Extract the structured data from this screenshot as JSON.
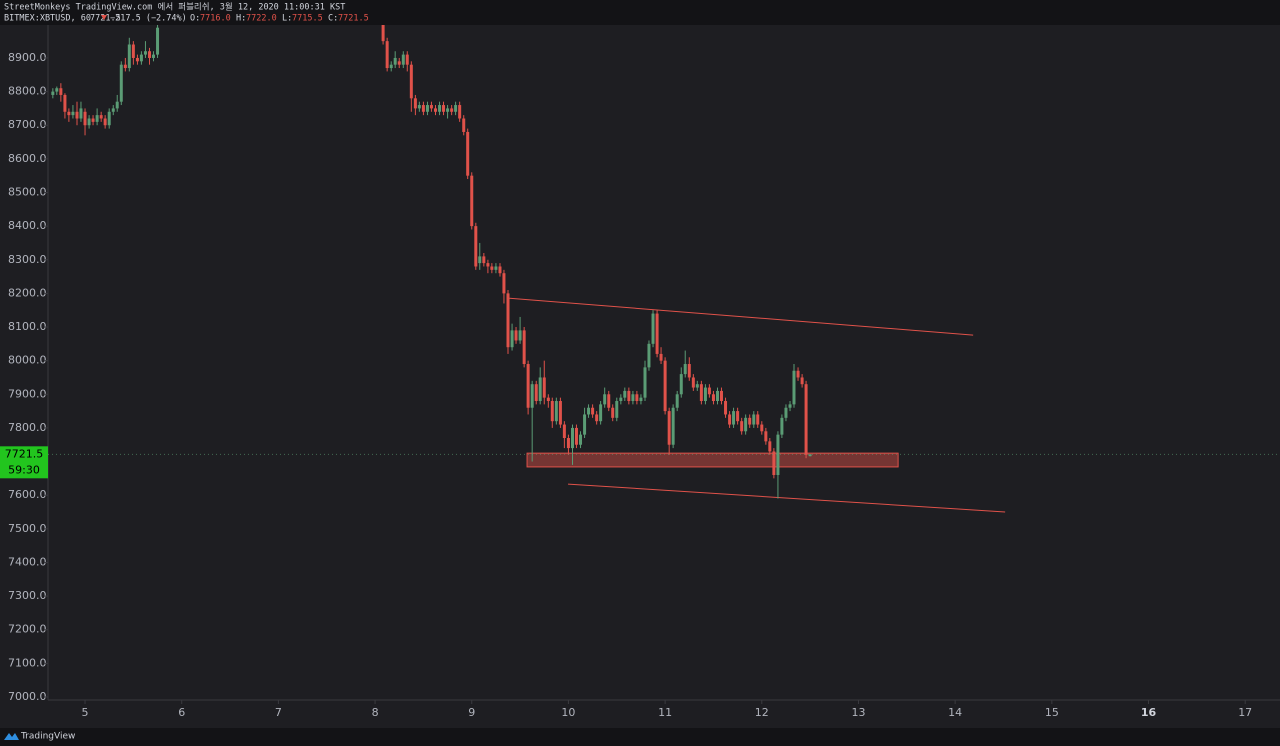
{
  "header": {
    "published": "StreetMonkeys TradingView.com 에서 퍼블리쉬, 3월 12, 2020 11:00:31 KST",
    "symbol": "BITMEX:XBTUSD, 60",
    "last": "7721.5",
    "change": "−217.5 (−2.74%)",
    "ohlc": [
      {
        "label": "O:",
        "value": "7716.0"
      },
      {
        "label": "H:",
        "value": "7722.0"
      },
      {
        "label": "L:",
        "value": "7715.5"
      },
      {
        "label": "C:",
        "value": "7721.5"
      }
    ]
  },
  "footer": {
    "brand": "TradingView"
  },
  "chart_data": {
    "type": "candlestick",
    "up_color": "#5b9c75",
    "down_color": "#e0524a",
    "xlim": [
      4.617,
      17.36
    ],
    "xticks": [
      5,
      6,
      7,
      8,
      9,
      10,
      11,
      12,
      13,
      14,
      15,
      16,
      17
    ],
    "ylim": [
      6991,
      8998
    ],
    "yticks": [
      {
        "value": 8900,
        "label": "8900.0"
      },
      {
        "value": 8800,
        "label": "8800.0"
      },
      {
        "value": 8700,
        "label": "8700.0"
      },
      {
        "value": 8600,
        "label": "8600.0"
      },
      {
        "value": 8500,
        "label": "8500.0"
      },
      {
        "value": 8400,
        "label": "8400.0"
      },
      {
        "value": 8300,
        "label": "8300.0"
      },
      {
        "value": 8200,
        "label": "8200.0"
      },
      {
        "value": 8100,
        "label": "8100.0"
      },
      {
        "value": 8000,
        "label": "8000.0"
      },
      {
        "value": 7900,
        "label": "7900.0"
      },
      {
        "value": 7800,
        "label": "7800.0"
      },
      {
        "value": 7700,
        "label": "7700.0"
      },
      {
        "value": 7600,
        "label": "7600.0"
      },
      {
        "value": 7500,
        "label": "7500.0"
      },
      {
        "value": 7400,
        "label": "7400.0"
      },
      {
        "value": 7300,
        "label": "7300.0"
      },
      {
        "value": 7200,
        "label": "7200.0"
      },
      {
        "value": 7100,
        "label": "7100.0"
      },
      {
        "value": 7000,
        "label": "7000.0"
      }
    ],
    "x": [
      4.667,
      4.708,
      4.75,
      4.792,
      4.833,
      4.875,
      4.917,
      4.958,
      5,
      5.042,
      5.083,
      5.125,
      5.167,
      5.208,
      5.25,
      5.292,
      5.333,
      5.375,
      5.417,
      5.458,
      5.5,
      5.542,
      5.583,
      5.625,
      5.667,
      5.708,
      5.75,
      8.083,
      8.125,
      8.167,
      8.208,
      8.25,
      8.292,
      8.333,
      8.375,
      8.417,
      8.458,
      8.5,
      8.542,
      8.583,
      8.625,
      8.667,
      8.708,
      8.75,
      8.792,
      8.833,
      8.875,
      8.917,
      8.958,
      9,
      9.042,
      9.083,
      9.125,
      9.167,
      9.208,
      9.25,
      9.292,
      9.333,
      9.375,
      9.417,
      9.458,
      9.5,
      9.542,
      9.583,
      9.625,
      9.667,
      9.708,
      9.75,
      9.792,
      9.833,
      9.875,
      9.917,
      9.958,
      10,
      10.042,
      10.083,
      10.125,
      10.167,
      10.208,
      10.25,
      10.292,
      10.333,
      10.375,
      10.417,
      10.458,
      10.5,
      10.542,
      10.583,
      10.625,
      10.667,
      10.708,
      10.75,
      10.792,
      10.833,
      10.875,
      10.917,
      10.958,
      11,
      11.042,
      11.083,
      11.125,
      11.167,
      11.208,
      11.25,
      11.292,
      11.333,
      11.375,
      11.417,
      11.458,
      11.5,
      11.542,
      11.583,
      11.625,
      11.667,
      11.708,
      11.75,
      11.792,
      11.833,
      11.875,
      11.917,
      11.958,
      12,
      12.042,
      12.083,
      12.125,
      12.167,
      12.208,
      12.25,
      12.292,
      12.333,
      12.375,
      12.417,
      12.458,
      12.5
    ],
    "open": [
      8790,
      8800,
      8810,
      8790,
      8740,
      8730,
      8740,
      8720,
      8740,
      8700,
      8720,
      8710,
      8730,
      8720,
      8700,
      8740,
      8750,
      8770,
      8880,
      8870,
      8940,
      8900,
      8890,
      8910,
      8920,
      8900,
      8910,
      9050,
      8950,
      8870,
      8880,
      8890,
      8880,
      8910,
      8880,
      8780,
      8750,
      8760,
      8740,
      8760,
      8750,
      8740,
      8760,
      8740,
      8750,
      8740,
      8760,
      8720,
      8680,
      8550,
      8400,
      8290,
      8310,
      8290,
      8280,
      8270,
      8280,
      8260,
      8200,
      8040,
      8090,
      8060,
      8090,
      7990,
      7860,
      7930,
      7880,
      7950,
      7890,
      7880,
      7820,
      7880,
      7810,
      7770,
      7740,
      7800,
      7750,
      7780,
      7840,
      7860,
      7840,
      7820,
      7870,
      7900,
      7860,
      7830,
      7880,
      7890,
      7910,
      7880,
      7900,
      7880,
      7890,
      7980,
      8050,
      8140,
      8020,
      8000,
      7850,
      7750,
      7860,
      7900,
      7960,
      7990,
      7950,
      7920,
      7930,
      7880,
      7920,
      7900,
      7880,
      7910,
      7880,
      7840,
      7810,
      7850,
      7820,
      7790,
      7830,
      7810,
      7840,
      7810,
      7790,
      7760,
      7730,
      7660,
      7780,
      7830,
      7860,
      7870,
      7970,
      7950,
      7930,
      7716
    ],
    "high": [
      8810,
      8815,
      8825,
      8795,
      8750,
      8760,
      8770,
      8770,
      8750,
      8730,
      8730,
      8750,
      8740,
      8730,
      8750,
      8760,
      8790,
      8890,
      8900,
      8960,
      8950,
      8910,
      8920,
      8950,
      8930,
      8920,
      9050,
      9080,
      8960,
      8890,
      8920,
      8900,
      8920,
      8920,
      8890,
      8790,
      8770,
      8770,
      8770,
      8770,
      8760,
      8770,
      8770,
      8760,
      8760,
      8770,
      8770,
      8730,
      8690,
      8560,
      8410,
      8350,
      8320,
      8300,
      8290,
      8290,
      8290,
      8270,
      8210,
      8110,
      8100,
      8130,
      8100,
      8000,
      7940,
      7940,
      7980,
      8000,
      7900,
      7890,
      7890,
      7890,
      7820,
      7780,
      7810,
      7810,
      7790,
      7860,
      7870,
      7870,
      7850,
      7880,
      7920,
      7910,
      7870,
      7890,
      7900,
      7920,
      7920,
      7910,
      7910,
      7900,
      8000,
      8060,
      8150,
      8150,
      8040,
      8010,
      7860,
      7870,
      7910,
      7980,
      8030,
      8010,
      7960,
      7940,
      7940,
      7930,
      7930,
      7910,
      7920,
      7920,
      7890,
      7850,
      7860,
      7860,
      7830,
      7840,
      7840,
      7850,
      7850,
      7820,
      7800,
      7770,
      7740,
      7790,
      7840,
      7870,
      7880,
      7990,
      7980,
      7960,
      7940,
      7722
    ],
    "low": [
      8780,
      8790,
      8770,
      8720,
      8710,
      8720,
      8700,
      8710,
      8670,
      8690,
      8700,
      8700,
      8710,
      8690,
      8690,
      8730,
      8740,
      8760,
      8860,
      8860,
      8880,
      8880,
      8880,
      8900,
      8880,
      8890,
      8900,
      8940,
      8860,
      8860,
      8870,
      8870,
      8870,
      8860,
      8740,
      8730,
      8740,
      8730,
      8730,
      8740,
      8730,
      8730,
      8730,
      8720,
      8730,
      8730,
      8710,
      8670,
      8540,
      8390,
      8270,
      8270,
      8280,
      8260,
      8260,
      8260,
      8250,
      8170,
      8020,
      8030,
      8050,
      8050,
      7980,
      7840,
      7700,
      7870,
      7870,
      7870,
      7860,
      7800,
      7810,
      7800,
      7740,
      7720,
      7690,
      7740,
      7740,
      7770,
      7830,
      7830,
      7810,
      7810,
      7860,
      7850,
      7820,
      7820,
      7870,
      7880,
      7870,
      7870,
      7870,
      7870,
      7880,
      7970,
      8040,
      8010,
      7990,
      7840,
      7720,
      7740,
      7850,
      7890,
      7950,
      7940,
      7910,
      7910,
      7870,
      7870,
      7890,
      7870,
      7870,
      7870,
      7830,
      7800,
      7800,
      7810,
      7780,
      7780,
      7800,
      7800,
      7800,
      7780,
      7750,
      7720,
      7650,
      7590,
      7770,
      7820,
      7850,
      7860,
      7940,
      7920,
      7710,
      7715.5
    ],
    "close": [
      8800,
      8810,
      8790,
      8740,
      8730,
      8740,
      8720,
      8750,
      8700,
      8720,
      8710,
      8730,
      8720,
      8700,
      8740,
      8750,
      8770,
      8880,
      8870,
      8940,
      8900,
      8890,
      8910,
      8920,
      8900,
      8910,
      8990,
      8950,
      8870,
      8880,
      8900,
      8880,
      8910,
      8880,
      8780,
      8750,
      8760,
      8740,
      8760,
      8750,
      8740,
      8760,
      8740,
      8750,
      8740,
      8760,
      8720,
      8680,
      8550,
      8400,
      8280,
      8310,
      8290,
      8280,
      8270,
      8280,
      8260,
      8200,
      8040,
      8090,
      8060,
      8090,
      7990,
      7860,
      7930,
      7880,
      7950,
      7890,
      7880,
      7820,
      7880,
      7810,
      7770,
      7740,
      7800,
      7750,
      7780,
      7840,
      7860,
      7840,
      7820,
      7870,
      7900,
      7860,
      7830,
      7880,
      7890,
      7910,
      7880,
      7900,
      7880,
      7890,
      7980,
      8050,
      8140,
      8020,
      8000,
      7850,
      7750,
      7860,
      7900,
      7960,
      7990,
      7950,
      7920,
      7930,
      7880,
      7920,
      7900,
      7880,
      7910,
      7880,
      7840,
      7810,
      7850,
      7820,
      7790,
      7830,
      7810,
      7840,
      7810,
      7790,
      7760,
      7730,
      7660,
      7780,
      7830,
      7860,
      7870,
      7970,
      7950,
      7930,
      7720,
      7721.5
    ],
    "trend_lines": [
      {
        "x": [
          9.376,
          14.186
        ],
        "y": [
          8186,
          8076
        ],
        "color": "#e0524a"
      },
      {
        "x": [
          9.996,
          14.517
        ],
        "y": [
          7633,
          7550
        ],
        "color": "#e0524a"
      }
    ],
    "zone": {
      "x": [
        9.572,
        13.41
      ],
      "y": [
        7725,
        7684
      ],
      "color": "#e0524a"
    },
    "price_tag": {
      "price": 7721.5,
      "countdown": "59:30",
      "color": "#22c51e"
    }
  }
}
